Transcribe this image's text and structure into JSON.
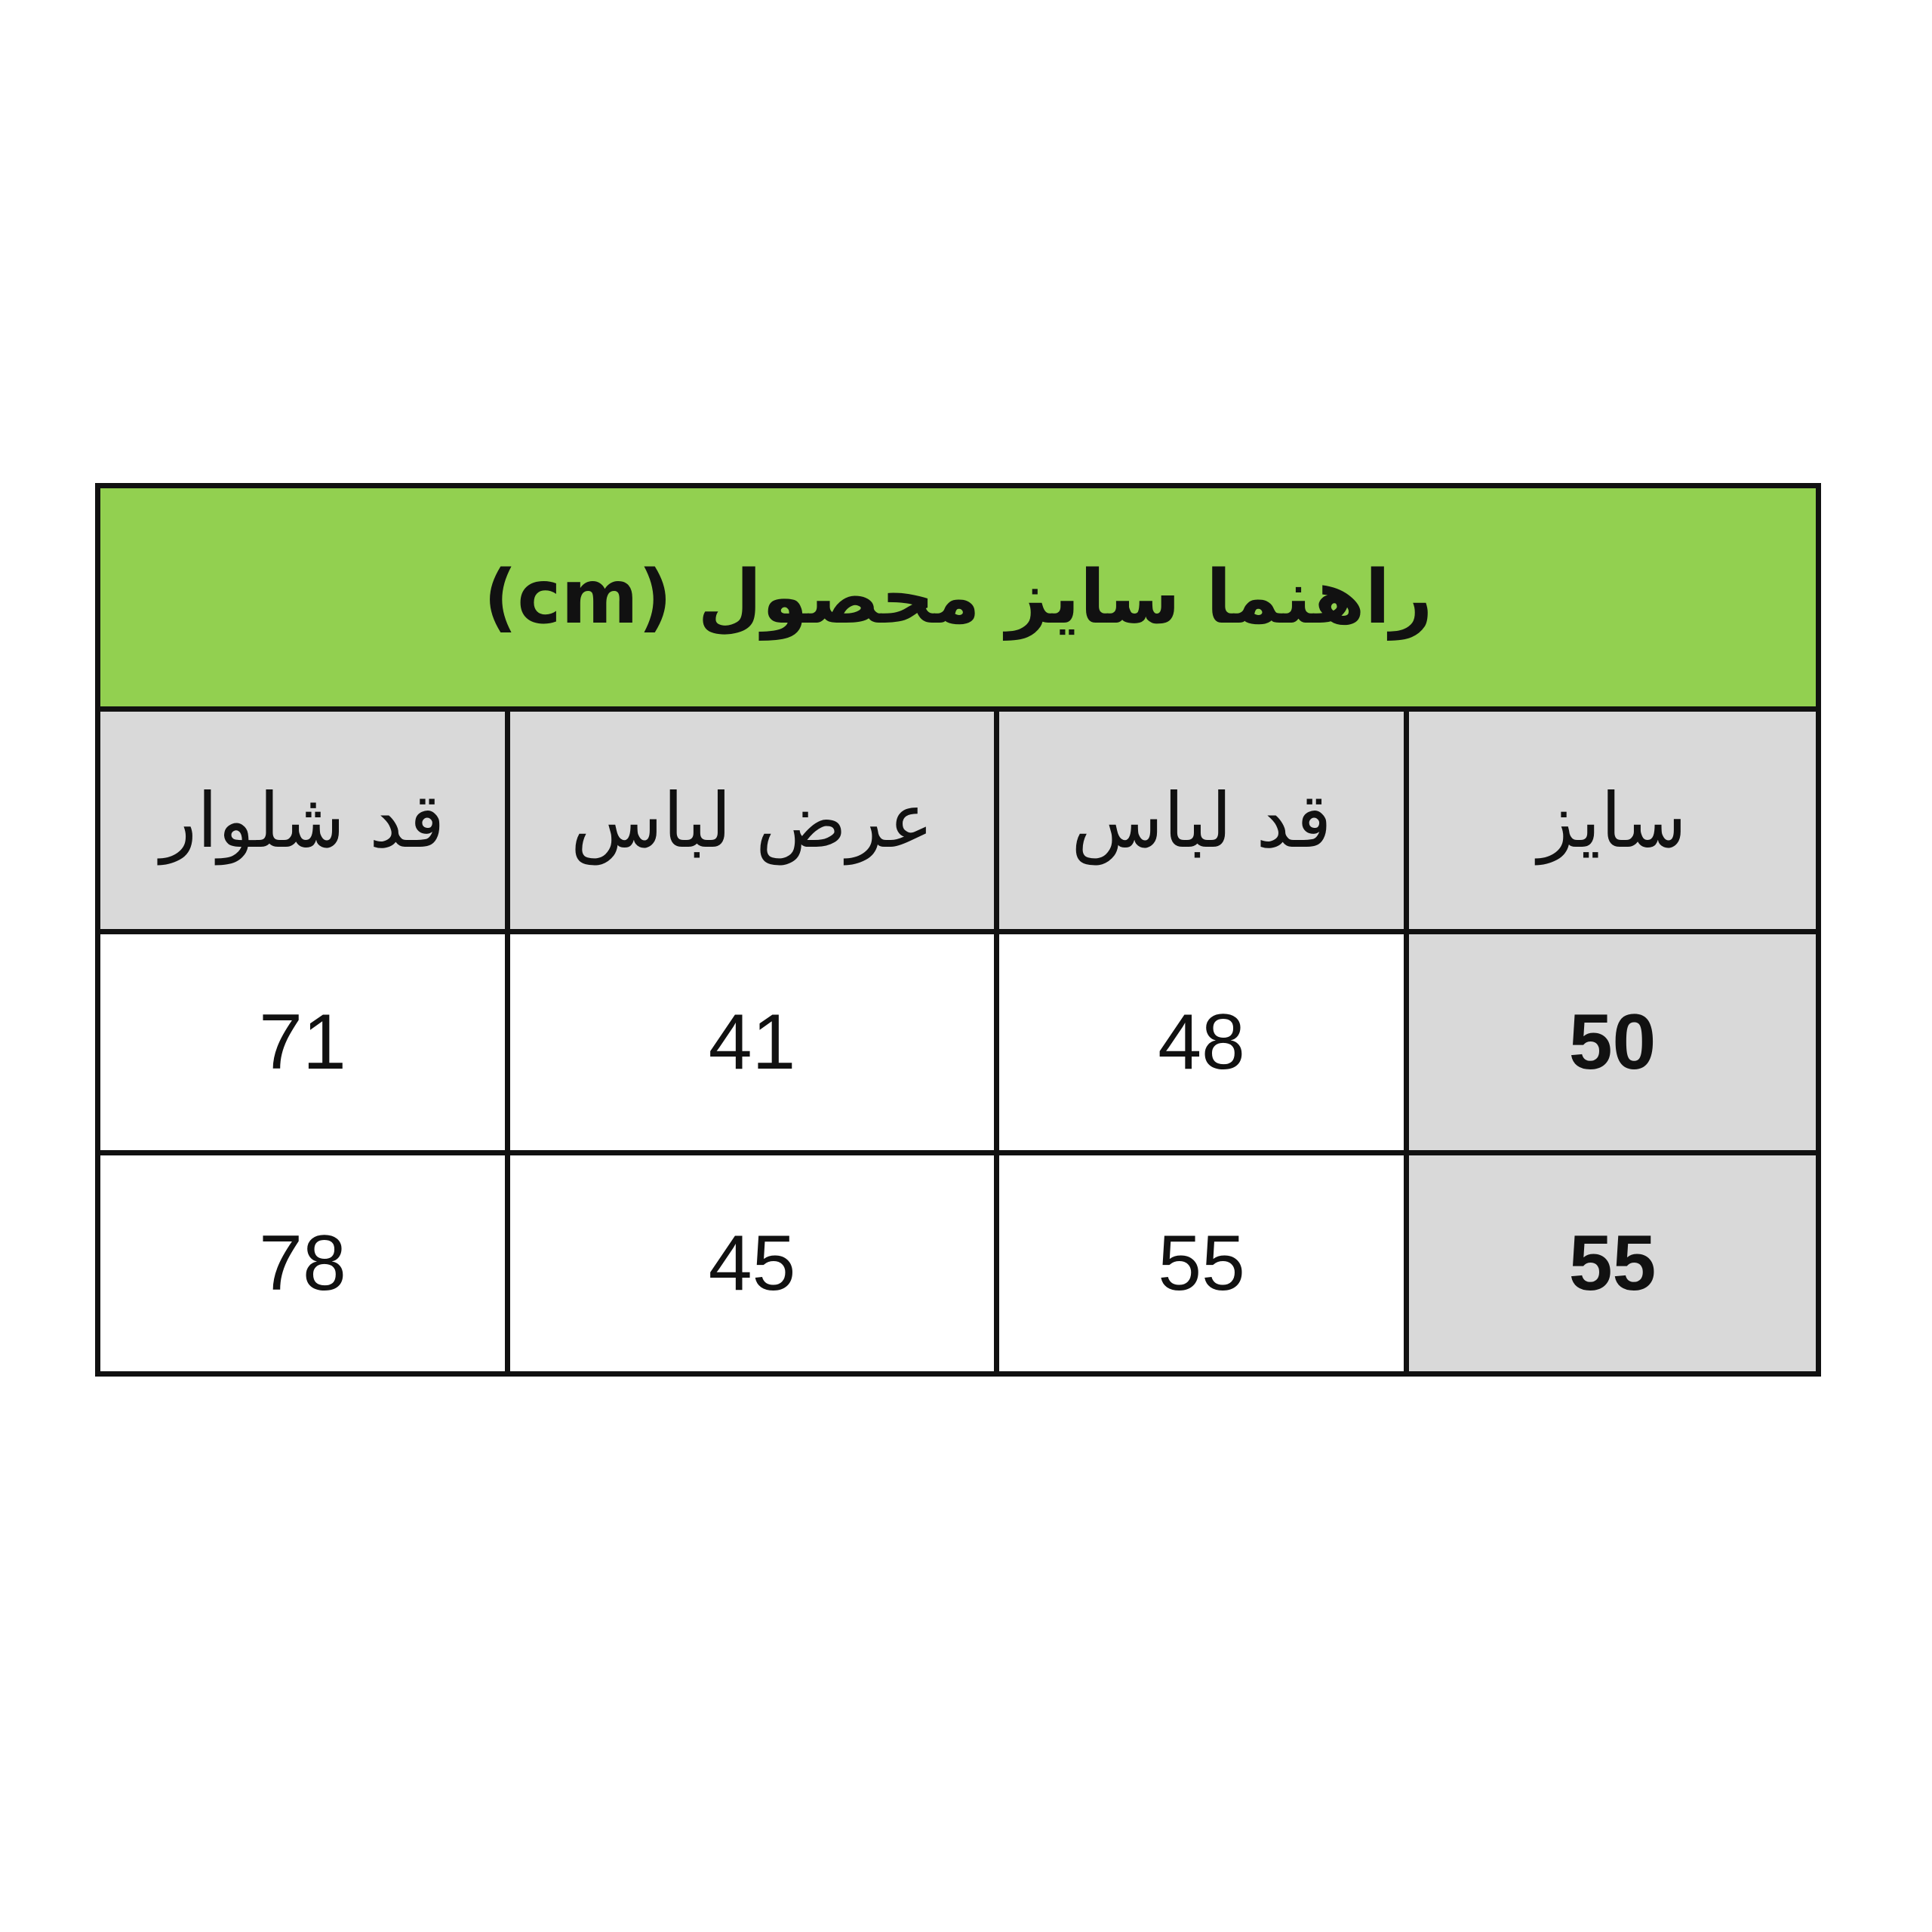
{
  "title": "راهنما سایز محصول (cm)",
  "columns": [
    "سایز",
    "قد لباس",
    "عرض لباس",
    "قد شلوار"
  ],
  "rows": [
    [
      "50",
      "48",
      "41",
      "71"
    ],
    [
      "55",
      "55",
      "45",
      "78"
    ]
  ],
  "colors": {
    "title_bg": "#92d050",
    "header_bg": "#d9d9d9",
    "border": "#111111"
  }
}
